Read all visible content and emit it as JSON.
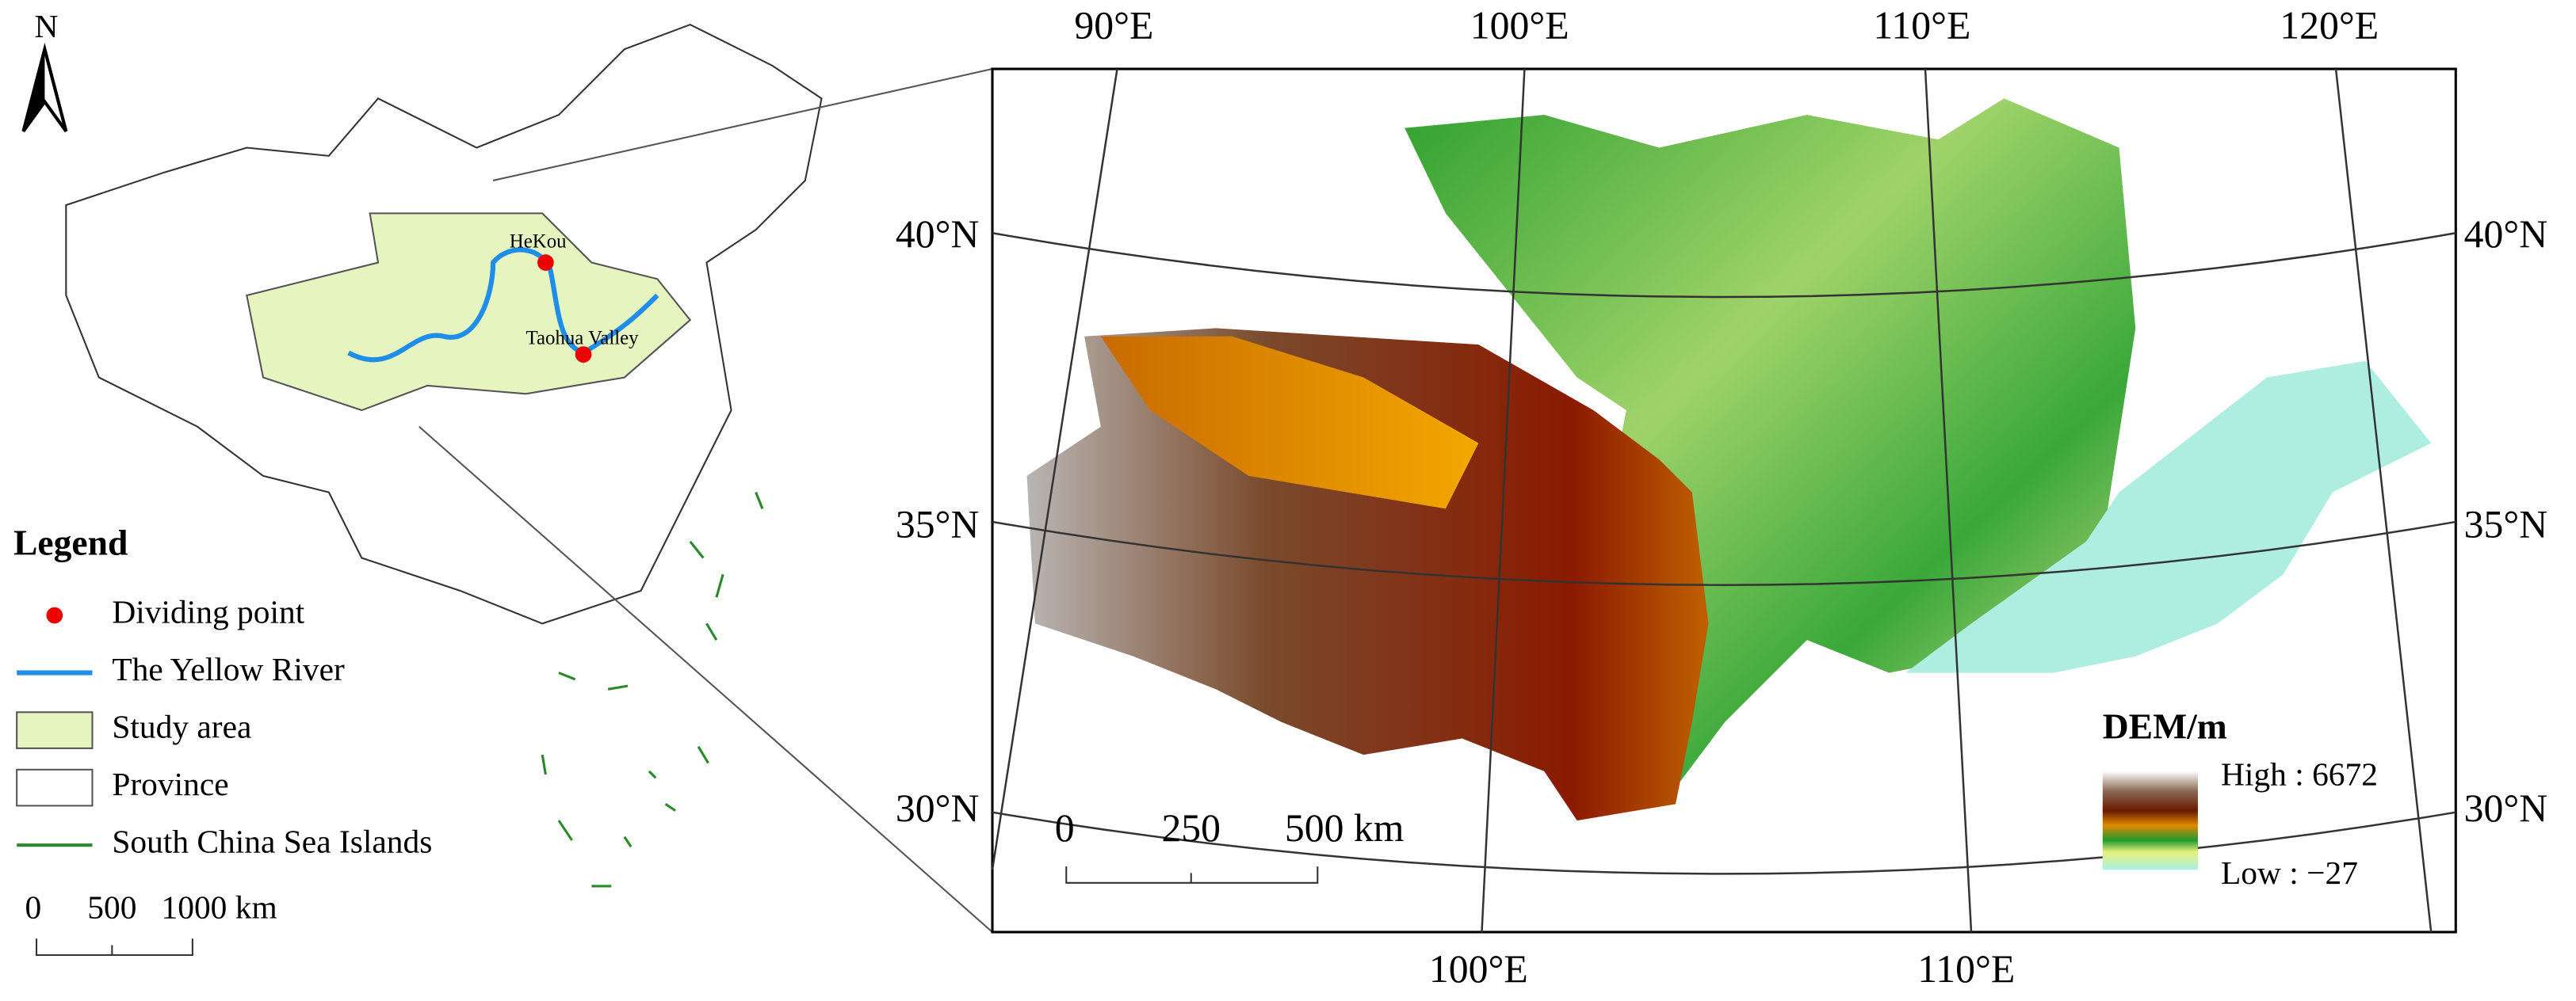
{
  "north_arrow": "N",
  "locator_map": {
    "points": [
      {
        "label": "HeKou"
      },
      {
        "label": "Taohua Valley"
      }
    ]
  },
  "legend": {
    "title": "Legend",
    "items": [
      "Dividing point",
      "The Yellow River",
      "Study area",
      "Province",
      "South China Sea Islands"
    ]
  },
  "locator_scale": [
    "0",
    "500",
    "1000 km"
  ],
  "dem_map": {
    "top_labels": [
      "90°E",
      "100°E",
      "110°E",
      "120°E"
    ],
    "bottom_labels": [
      "100°E",
      "110°E"
    ],
    "left_labels": [
      "40°N",
      "35°N",
      "30°N"
    ],
    "right_labels": [
      "40°N",
      "35°N",
      "30°N"
    ],
    "scale": [
      "0",
      "250",
      "500 km"
    ],
    "legend": {
      "title": "DEM/m",
      "high": "High : 6672",
      "low": "Low : −27"
    }
  }
}
